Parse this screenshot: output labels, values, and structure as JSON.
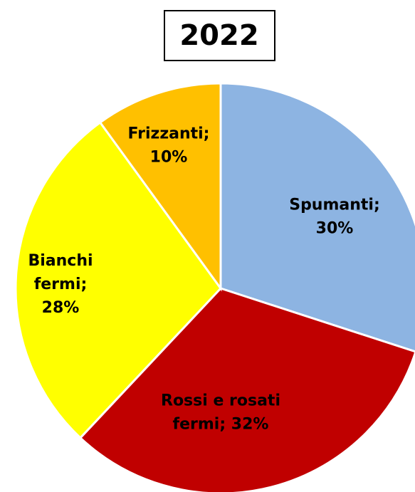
{
  "chart_data": {
    "type": "pie",
    "title": "2022",
    "values": [
      30,
      32,
      28,
      10
    ],
    "value_labels": [
      "Spumanti;\n30%",
      "Rossi e rosati\nfermi; 32%",
      "Bianchi\nfermi;\n28%",
      "Frizzanti;\n10%"
    ],
    "colors": [
      "#8db4e2",
      "#c00000",
      "#ffff00",
      "#ffc000"
    ]
  }
}
